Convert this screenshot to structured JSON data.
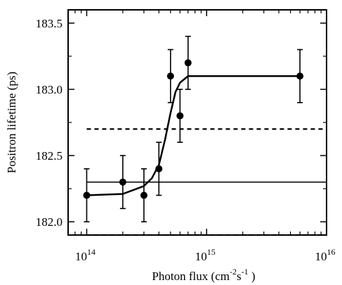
{
  "chart_data": {
    "type": "scatter",
    "title": "",
    "xlabel": "Photon flux (cm⁻²s⁻¹)",
    "xlabel_parts": {
      "base": "Photon flux (cm",
      "exp1": "-2",
      "mid": "s",
      "exp2": "-1",
      "end": " )"
    },
    "ylabel": "Positron lifetime (ps)",
    "x_scale": "log",
    "xlim": [
      70000000000000.0,
      1e+16
    ],
    "ylim": [
      181.9,
      183.6
    ],
    "x_ticks": [
      {
        "value": 100000000000000.0,
        "base": "10",
        "exp": "14"
      },
      {
        "value": 1000000000000000.0,
        "base": "10",
        "exp": "15"
      },
      {
        "value": 1e+16,
        "base": "10",
        "exp": "16"
      }
    ],
    "y_ticks": [
      {
        "value": 182.0,
        "label": "182.0"
      },
      {
        "value": 182.5,
        "label": "182.5"
      },
      {
        "value": 183.0,
        "label": "183.0"
      },
      {
        "value": 183.5,
        "label": "183.5"
      }
    ],
    "grid": false,
    "legend": "none",
    "series": [
      {
        "type": "scatter_errorbar",
        "x": [
          100000000000000.0,
          200000000000000.0,
          300000000000000.0,
          400000000000000.0,
          500000000000000.0,
          600000000000000.0,
          700000000000000.0,
          6000000000000000.0
        ],
        "y": [
          182.2,
          182.3,
          182.2,
          182.4,
          183.1,
          182.8,
          183.2,
          183.1
        ],
        "yerr": [
          0.2,
          0.2,
          0.2,
          0.2,
          0.2,
          0.2,
          0.2,
          0.2
        ]
      },
      {
        "type": "fit_line",
        "x": [
          100000000000000.0,
          200000000000000.0,
          300000000000000.0,
          350000000000000.0,
          400000000000000.0,
          450000000000000.0,
          500000000000000.0,
          550000000000000.0,
          600000000000000.0,
          700000000000000.0,
          800000000000000.0,
          6000000000000000.0
        ],
        "y": [
          182.2,
          182.21,
          182.27,
          182.33,
          182.43,
          182.62,
          182.82,
          182.98,
          183.05,
          183.1,
          183.1,
          183.1
        ]
      },
      {
        "type": "hline_solid",
        "y": 182.3,
        "x": [
          100000000000000.0,
          1e+16
        ]
      },
      {
        "type": "hline_dashed",
        "y": 182.7,
        "x": [
          100000000000000.0,
          1e+16
        ]
      },
      {
        "type": "hline_dashed",
        "y": 181.9,
        "x": [
          100000000000000.0,
          1e+16
        ]
      }
    ]
  }
}
